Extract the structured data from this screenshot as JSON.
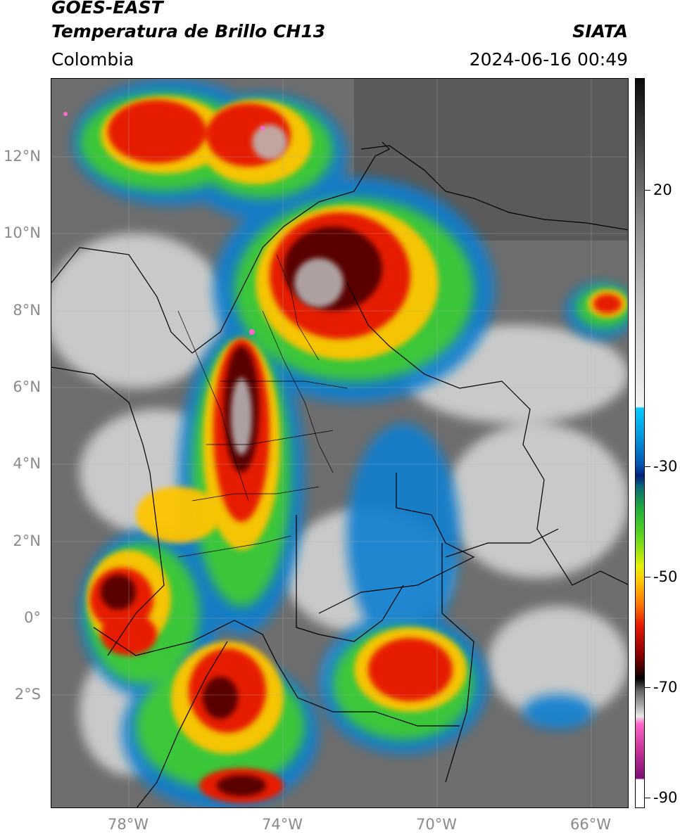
{
  "header": {
    "title_line1": "GOES-EAST",
    "title_line2": "Temperatura de Brillo CH13",
    "agency": "SIATA",
    "region": "Colombia",
    "datetime": "2024-06-16 00:49"
  },
  "axes": {
    "lat_labels": [
      "12°N",
      "10°N",
      "8°N",
      "6°N",
      "4°N",
      "2°N",
      "0°",
      "2°S"
    ],
    "lon_labels": [
      "78°W",
      "74°W",
      "70°W",
      "66°W"
    ]
  },
  "colorbar": {
    "tick_labels": [
      "20",
      "-30",
      "-50",
      "-70",
      "-90"
    ]
  },
  "palette": {
    "coldest_tops": "#1a1a1a",
    "very_cold": "#8c0000",
    "cold": "#e61a00",
    "mid": "#ffc400",
    "warmish": "#5fd91a",
    "cool": "#0055b0",
    "light_cloud": "#d9d9d9",
    "clear_land_sea": "#6e6e6e",
    "overshoot": "#ff66cc"
  }
}
